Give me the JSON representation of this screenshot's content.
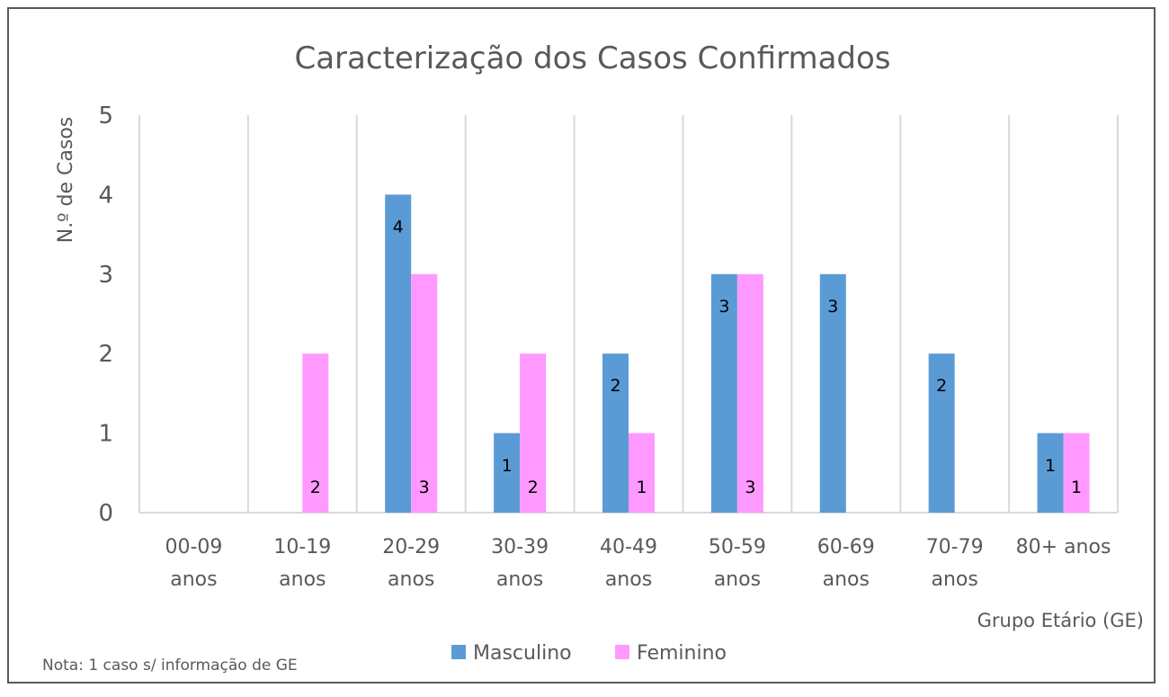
{
  "chart_data": {
    "type": "bar",
    "title": "Caracterização dos Casos Confirmados",
    "xlabel": "Grupo Etário (GE)",
    "ylabel": "N.º de Casos",
    "categories": [
      [
        "00-09",
        "anos"
      ],
      [
        "10-19",
        "anos"
      ],
      [
        "20-29",
        "anos"
      ],
      [
        "30-39",
        "anos"
      ],
      [
        "40-49",
        "anos"
      ],
      [
        "50-59",
        "anos"
      ],
      [
        "60-69",
        "anos"
      ],
      [
        "70-79",
        "anos"
      ],
      [
        "80+ anos"
      ]
    ],
    "series": [
      {
        "name": "Masculino",
        "color": "#5b9bd5",
        "values": [
          0,
          0,
          4,
          1,
          2,
          3,
          3,
          2,
          1
        ]
      },
      {
        "name": "Feminino",
        "color": "#ff99ff",
        "values": [
          0,
          2,
          3,
          2,
          1,
          3,
          0,
          0,
          1
        ]
      }
    ],
    "data_labels": {
      "Masculino": [
        "",
        "",
        "4",
        "1",
        "2",
        "3",
        "3",
        "2",
        "1"
      ],
      "Feminino": [
        "",
        "2",
        "3",
        "2",
        "1",
        "3",
        "",
        "",
        "1"
      ]
    },
    "ylim": [
      0,
      5
    ],
    "yticks": [
      0,
      1,
      2,
      3,
      4,
      5
    ],
    "grid": "vertical category dividers",
    "legend_position": "bottom"
  },
  "note": "Nota: 1 caso s/ informação de GE"
}
